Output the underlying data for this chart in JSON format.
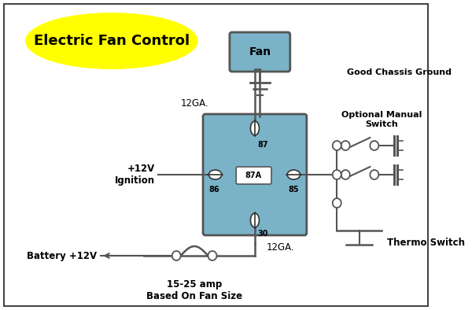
{
  "bg_color": "#ffffff",
  "border_color": "#444444",
  "relay_color": "#7ab3c8",
  "fan_box_color": "#7ab3c8",
  "title_fill": "#ffff00",
  "title_text": "Electric Fan Control",
  "title_fontsize": 13,
  "fan_label": "Fan",
  "label_12ga_top": "12GA.",
  "label_12ga_bot": "12GA.",
  "label_ignition": "+12V\nIgnition",
  "label_battery": "Battery +12V",
  "label_fuse": "15-25 amp\nBased On Fan Size",
  "label_ground": "Good Chassis Ground",
  "label_optional": "Optional Manual\nSwitch",
  "label_thermo": "Thermo Switch",
  "pin87": "87",
  "pin86": "86",
  "pin87a": "87A",
  "pin85": "85",
  "pin30": "30",
  "wire_color": "#555555",
  "wire_lw": 1.5
}
